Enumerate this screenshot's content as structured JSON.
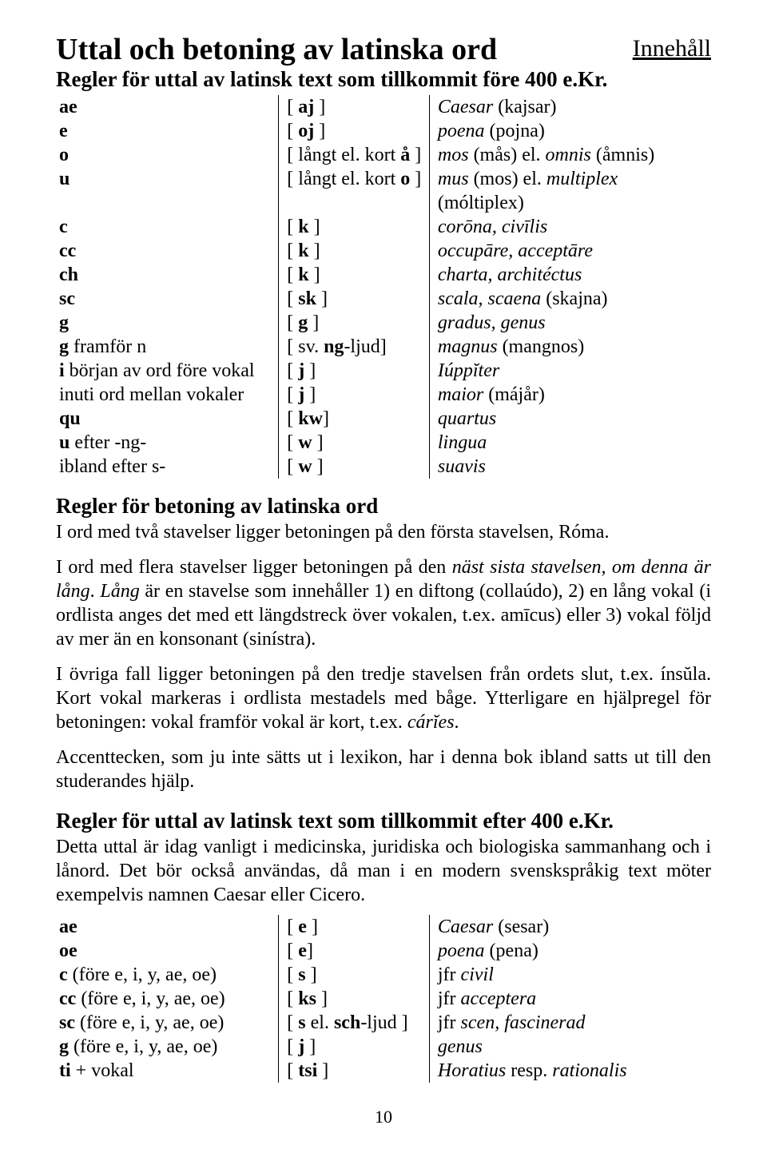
{
  "header": {
    "title": "Uttal och betoning av latinska ord",
    "toc_link": "Innehåll"
  },
  "section1": {
    "heading": "Regler för uttal av latinsk text som tillkommit före 400 e.Kr."
  },
  "table1": {
    "rows": [
      {
        "c1a": "ae",
        "c1b": "",
        "c2a": "[ ",
        "c2b": "aj",
        "c2c": " ]",
        "c3a": "Caesar",
        "c3b": " (kajsar)"
      },
      {
        "c1a": "e",
        "c1b": "",
        "c2a": "[ ",
        "c2b": "oj",
        "c2c": " ]",
        "c3a": "poena",
        "c3b": " (pojna)"
      },
      {
        "c1a": "o",
        "c1b": "",
        "c2a": "[ långt el. kort ",
        "c2b": "å",
        "c2c": " ]",
        "c3a": "mos",
        "c3b": " (mås) el. ",
        "c3c": "omnis",
        "c3d": " (åmnis)"
      },
      {
        "c1a": "u",
        "c1b": "",
        "c2a": "[ långt el. kort ",
        "c2b": "o",
        "c2c": " ]",
        "c3a": "mus",
        "c3b": " (mos) el. ",
        "c3c": "multiplex",
        "c3d": " (móltiplex)"
      },
      {
        "c1a": "c",
        "c1b": "",
        "c2a": "[ ",
        "c2b": "k",
        "c2c": " ]",
        "c3a": "corōna, civīlis",
        "c3b": ""
      },
      {
        "c1a": "cc",
        "c1b": "",
        "c2a": "[ ",
        "c2b": "k",
        "c2c": " ]",
        "c3a": "occupāre, acceptāre",
        "c3b": ""
      },
      {
        "c1a": "ch",
        "c1b": "",
        "c2a": "[ ",
        "c2b": "k",
        "c2c": " ]",
        "c3a": "charta, architéctus",
        "c3b": ""
      },
      {
        "c1a": "sc",
        "c1b": "",
        "c2a": "[ ",
        "c2b": "sk",
        "c2c": " ]",
        "c3a": "scala, scaena",
        "c3b": " (skajna)"
      },
      {
        "c1a": "g",
        "c1b": "",
        "c2a": "[ ",
        "c2b": "g",
        "c2c": " ]",
        "c3a": "gradus, genus",
        "c3b": ""
      },
      {
        "c1a": "g",
        "c1b": " framför n",
        "c2a": "[ sv. ",
        "c2b": "ng",
        "c2c": "-ljud]",
        "c3a": "magnus",
        "c3b": " (mangnos)"
      },
      {
        "c1a": "i",
        "c1b": " början av ord före vokal",
        "c2a": "[ ",
        "c2b": "j",
        "c2c": " ]",
        "c3a": "Iúppĭter",
        "c3b": ""
      },
      {
        "c1a": "",
        "c1b": "inuti ord mellan vokaler",
        "c2a": "[ ",
        "c2b": "j",
        "c2c": " ]",
        "c3a": "maior",
        "c3b": " (májår)"
      },
      {
        "c1a": "qu",
        "c1b": "",
        "c2a": "[ ",
        "c2b": "kw",
        "c2c": "]",
        "c3a": "quartus",
        "c3b": ""
      },
      {
        "c1a": "u",
        "c1b": " efter -ng-",
        "c2a": "[ ",
        "c2b": "w",
        "c2c": " ]",
        "c3a": "lingua",
        "c3b": ""
      },
      {
        "c1a": "",
        "c1b": "ibland efter s-",
        "c2a": "[ ",
        "c2b": "w",
        "c2c": " ]",
        "c3a": "suavis",
        "c3b": ""
      }
    ]
  },
  "section2": {
    "heading": "Regler för betoning av latinska ord",
    "p1": "I ord med två stavelser ligger betoningen på den första stavelsen, Róma.",
    "p2a": "I ord med flera stavelser ligger betoningen på den ",
    "p2b": "näst sista stavelsen, om denna är lång",
    "p2c": ". ",
    "p2d": "Lång",
    "p2e": " är en stavelse som innehåller 1) en diftong (collaúdo), 2) en lång vokal (i ordlista anges det med ett längdstreck över vokalen, t.ex. amīcus) eller 3) vokal följd av mer än en konsonant (sinístra).",
    "p3a": "I övriga fall ligger betoningen på den tredje stavelsen från ordets slut, t.ex. ínsŭla. Kort vokal markeras i ordlista mestadels med båge. Ytterligare en hjälpregel för betoningen: vokal framför vokal är kort, t.ex. ",
    "p3b": "cárĭes",
    "p3c": ".",
    "p4": "Accenttecken, som ju inte sätts ut i lexikon, har i denna bok ibland satts ut till den studerandes hjälp."
  },
  "section3": {
    "heading": "Regler för uttal av latinsk text som tillkommit efter 400 e.Kr.",
    "intro": "Detta uttal är idag vanligt i medicinska, juridiska och biologiska sammanhang och i lånord. Det bör också användas, då man i en modern svenskspråkig text möter exempelvis namnen Caesar eller Cicero."
  },
  "table2": {
    "rows": [
      {
        "c1a": "ae",
        "c1b": "",
        "c2a": "[ ",
        "c2b": "e",
        "c2c": " ]",
        "c3a": "Caesar",
        "c3b": " (sesar)"
      },
      {
        "c1a": "oe",
        "c1b": "",
        "c2a": "[ ",
        "c2b": "e",
        "c2c": "]",
        "c3a": "poena",
        "c3b": " (pena)"
      },
      {
        "c1a": "c",
        "c1b": "   (före e, i, y, ae, oe)",
        "c2a": "[ ",
        "c2b": "s",
        "c2c": " ]",
        "c3pre": "jfr ",
        "c3a": "civil",
        "c3b": ""
      },
      {
        "c1a": "cc",
        "c1b": "   (före e, i, y, ae, oe)",
        "c2a": "[ ",
        "c2b": "ks",
        "c2c": " ]",
        "c3pre": "jfr ",
        "c3a": "acceptera",
        "c3b": ""
      },
      {
        "c1a": "sc",
        "c1b": "   (före e, i, y, ae, oe)",
        "c2a": "[ ",
        "c2b": "s",
        "c2c": " el. ",
        "c2d": "sch",
        "c2e": "-ljud ]",
        "c3pre": "jfr ",
        "c3a": "scen, fascinerad",
        "c3b": ""
      },
      {
        "c1a": "g",
        "c1b": " (före e, i, y, ae, oe)",
        "c2a": "[ ",
        "c2b": "j",
        "c2c": " ]",
        "c3a": "genus",
        "c3b": ""
      },
      {
        "c1a": "ti",
        "c1b": " + vokal",
        "c2a": "[ ",
        "c2b": "tsi",
        "c2c": " ]",
        "c3a": "Horatius",
        "c3b": " resp. ",
        "c3c": "rationalis"
      }
    ]
  },
  "pagenum": "10"
}
